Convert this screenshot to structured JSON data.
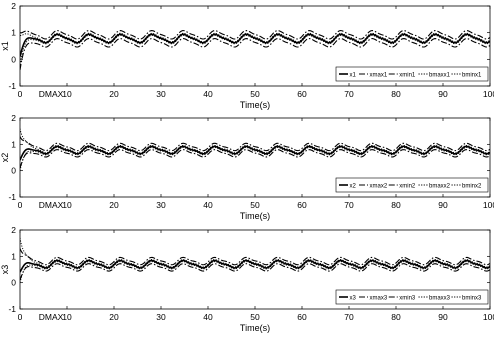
{
  "chart_data": [
    {
      "type": "line",
      "ylabel": "x1",
      "xlabel": "Time(s)",
      "xlim": [
        0,
        100
      ],
      "ylim": [
        -1,
        2
      ],
      "x_ticks": [
        0,
        10,
        20,
        30,
        40,
        50,
        60,
        70,
        80,
        90,
        100
      ],
      "y_ticks": [
        -1,
        0,
        1,
        2
      ],
      "annotation": "DMAX",
      "annotation_x": 4,
      "legend": [
        "x1",
        "xmax1",
        "xmin1",
        "bmaxx1",
        "bminx1"
      ],
      "legend_position": "bottom-right",
      "grid": false,
      "series": [
        {
          "name": "x1",
          "line_style": "solid",
          "base": 0.78,
          "amplitude": 0.14,
          "period": 6.7,
          "initial": 0.1
        },
        {
          "name": "xmax1",
          "line_style": "dash-dot",
          "base": 0.92,
          "amplitude": 0.14,
          "period": 6.7,
          "initial": 1.0
        },
        {
          "name": "xmin1",
          "line_style": "dash-dot",
          "base": 0.62,
          "amplitude": 0.14,
          "period": 6.7,
          "initial": -0.4
        },
        {
          "name": "bmaxx1",
          "line_style": "dotted",
          "base": 0.82,
          "amplitude": 0.14,
          "period": 6.7,
          "initial": 0.9
        },
        {
          "name": "bminx1",
          "line_style": "dotted",
          "base": 0.74,
          "amplitude": 0.14,
          "period": 6.7,
          "initial": -0.2
        }
      ]
    },
    {
      "type": "line",
      "ylabel": "x2",
      "xlabel": "Time(s)",
      "xlim": [
        0,
        100
      ],
      "ylim": [
        -1,
        2
      ],
      "x_ticks": [
        0,
        10,
        20,
        30,
        40,
        50,
        60,
        70,
        80,
        90,
        100
      ],
      "y_ticks": [
        -1,
        0,
        1,
        2
      ],
      "annotation": "DMAX",
      "annotation_x": 4,
      "legend": [
        "x2",
        "xmax2",
        "xmin2",
        "bmaxx2",
        "bminx2"
      ],
      "legend_position": "bottom-right",
      "grid": false,
      "series": [
        {
          "name": "x2",
          "line_style": "solid",
          "base": 0.78,
          "amplitude": 0.12,
          "period": 6.7,
          "initial": 0.4
        },
        {
          "name": "xmax2",
          "line_style": "dash-dot",
          "base": 0.9,
          "amplitude": 0.12,
          "period": 6.7,
          "initial": 1.3
        },
        {
          "name": "xmin2",
          "line_style": "dash-dot",
          "base": 0.66,
          "amplitude": 0.12,
          "period": 6.7,
          "initial": 0.1
        },
        {
          "name": "bmaxx2",
          "line_style": "dotted",
          "base": 0.82,
          "amplitude": 0.12,
          "period": 6.7,
          "initial": 1.6
        },
        {
          "name": "bminx2",
          "line_style": "dotted",
          "base": 0.74,
          "amplitude": 0.12,
          "period": 6.7,
          "initial": 0.0
        }
      ]
    },
    {
      "type": "line",
      "ylabel": "x3",
      "xlabel": "Time(s)",
      "xlim": [
        0,
        100
      ],
      "ylim": [
        -1,
        2
      ],
      "x_ticks": [
        0,
        10,
        20,
        30,
        40,
        50,
        60,
        70,
        80,
        90,
        100
      ],
      "y_ticks": [
        -1,
        0,
        1,
        2
      ],
      "annotation": "DMAX",
      "annotation_x": 4,
      "legend": [
        "x3",
        "xmax3",
        "xmin3",
        "bmaxx3",
        "bminx3"
      ],
      "legend_position": "bottom-right",
      "grid": false,
      "series": [
        {
          "name": "x3",
          "line_style": "solid",
          "base": 0.7,
          "amplitude": 0.12,
          "period": 6.7,
          "initial": 0.4
        },
        {
          "name": "xmax3",
          "line_style": "dash-dot",
          "base": 0.82,
          "amplitude": 0.12,
          "period": 6.7,
          "initial": 1.3
        },
        {
          "name": "xmin3",
          "line_style": "dash-dot",
          "base": 0.58,
          "amplitude": 0.12,
          "period": 6.7,
          "initial": 0.1
        },
        {
          "name": "bmaxx3",
          "line_style": "dotted",
          "base": 0.74,
          "amplitude": 0.12,
          "period": 6.7,
          "initial": 1.7
        },
        {
          "name": "bminx3",
          "line_style": "dotted",
          "base": 0.66,
          "amplitude": 0.12,
          "period": 6.7,
          "initial": 0.0
        }
      ]
    }
  ]
}
